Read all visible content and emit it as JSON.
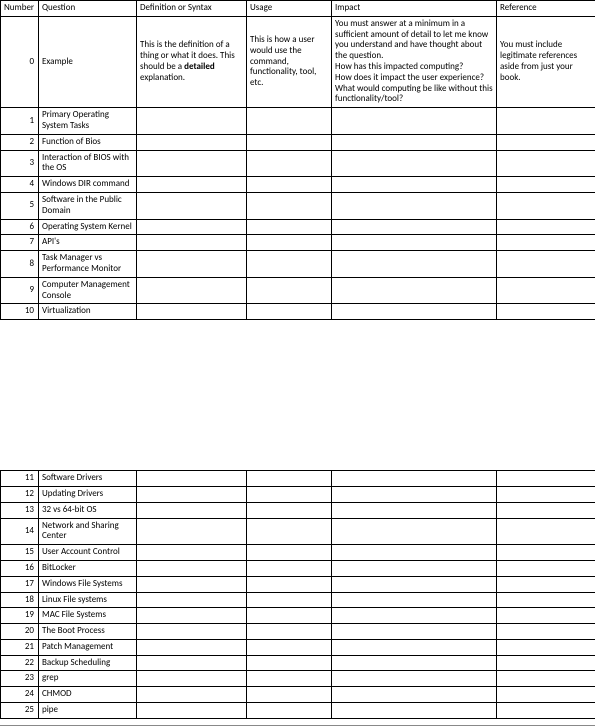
{
  "columns": {
    "number": "Number",
    "question": "Question",
    "definition": "Definition or Syntax",
    "usage": "Usage",
    "impact": "Impact",
    "reference": "Reference"
  },
  "example": {
    "num": "0",
    "question": "Example",
    "definition_pre": "This is the definition of a thing or what it does. This should be a ",
    "definition_bold": "detailed",
    "definition_post": " explanation.",
    "usage": "This is how a user would use the command, functionality, tool, etc.",
    "impact": "You must answer at a minimum in a sufficient amount of detail to let me know you understand and have thought about the question.\nHow has this impacted computing?\nHow does it impact the user experience?\nWhat would computing be like without this functionality/tool?",
    "reference": "You must include legitimate references aside from just your book."
  },
  "part1": [
    {
      "num": "1",
      "q": "Primary Operating System Tasks"
    },
    {
      "num": "2",
      "q": "Function of Bios"
    },
    {
      "num": "3",
      "q": "Interaction of BIOS with the OS"
    },
    {
      "num": "4",
      "q": "Windows DIR command"
    },
    {
      "num": "5",
      "q": "Software in the Public Domain"
    },
    {
      "num": "6",
      "q": "Operating System Kernel"
    },
    {
      "num": "7",
      "q": "API's"
    },
    {
      "num": "8",
      "q": "Task Manager vs Performance Monitor"
    },
    {
      "num": "9",
      "q": "Computer Management Console"
    },
    {
      "num": "10",
      "q": "Virtualization"
    }
  ],
  "part2": [
    {
      "num": "11",
      "q": "Software Drivers"
    },
    {
      "num": "12",
      "q": "Updating Drivers"
    },
    {
      "num": "13",
      "q": "32 vs 64-bit OS"
    },
    {
      "num": "14",
      "q": "Network and Sharing Center"
    },
    {
      "num": "15",
      "q": "User Account Control"
    },
    {
      "num": "16",
      "q": "BitLocker"
    },
    {
      "num": "17",
      "q": "Windows File Systems"
    },
    {
      "num": "18",
      "q": "Linux File systems"
    },
    {
      "num": "19",
      "q": "MAC File Systems"
    },
    {
      "num": "20",
      "q": "The Boot Process"
    },
    {
      "num": "21",
      "q": "Patch Management"
    },
    {
      "num": "22",
      "q": "Backup Scheduling"
    },
    {
      "num": "23",
      "q": "grep"
    },
    {
      "num": "24",
      "q": "CHMOD"
    },
    {
      "num": "25",
      "q": "pipe"
    }
  ]
}
